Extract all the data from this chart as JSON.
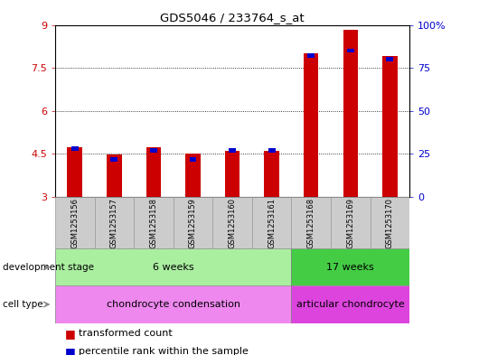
{
  "title": "GDS5046 / 233764_s_at",
  "samples": [
    "GSM1253156",
    "GSM1253157",
    "GSM1253158",
    "GSM1253159",
    "GSM1253160",
    "GSM1253161",
    "GSM1253168",
    "GSM1253169",
    "GSM1253170"
  ],
  "red_values": [
    4.72,
    4.48,
    4.72,
    4.5,
    4.6,
    4.62,
    8.02,
    8.82,
    7.92
  ],
  "blue_values": [
    28,
    22,
    27,
    22,
    27,
    27,
    82,
    85,
    80
  ],
  "ylim_left": [
    3,
    9
  ],
  "ylim_right": [
    0,
    100
  ],
  "yticks_left": [
    3,
    4.5,
    6,
    7.5,
    9
  ],
  "yticks_right": [
    0,
    25,
    50,
    75,
    100
  ],
  "ytick_labels_right": [
    "0",
    "25",
    "50",
    "75",
    "100%"
  ],
  "red_color": "#cc0000",
  "blue_color": "#0000cc",
  "dev_stage_groups": [
    {
      "label": "6 weeks",
      "start": 0,
      "end": 5,
      "color": "#aaeea0"
    },
    {
      "label": "17 weeks",
      "start": 6,
      "end": 8,
      "color": "#44cc44"
    }
  ],
  "cell_type_groups": [
    {
      "label": "chondrocyte condensation",
      "start": 0,
      "end": 5,
      "color": "#ee88ee"
    },
    {
      "label": "articular chondrocyte",
      "start": 6,
      "end": 8,
      "color": "#dd44dd"
    }
  ],
  "dev_stage_label": "development stage",
  "cell_type_label": "cell type",
  "legend_red": "transformed count",
  "legend_blue": "percentile rank within the sample",
  "sample_box_color": "#cccccc",
  "sample_box_edge": "#999999"
}
